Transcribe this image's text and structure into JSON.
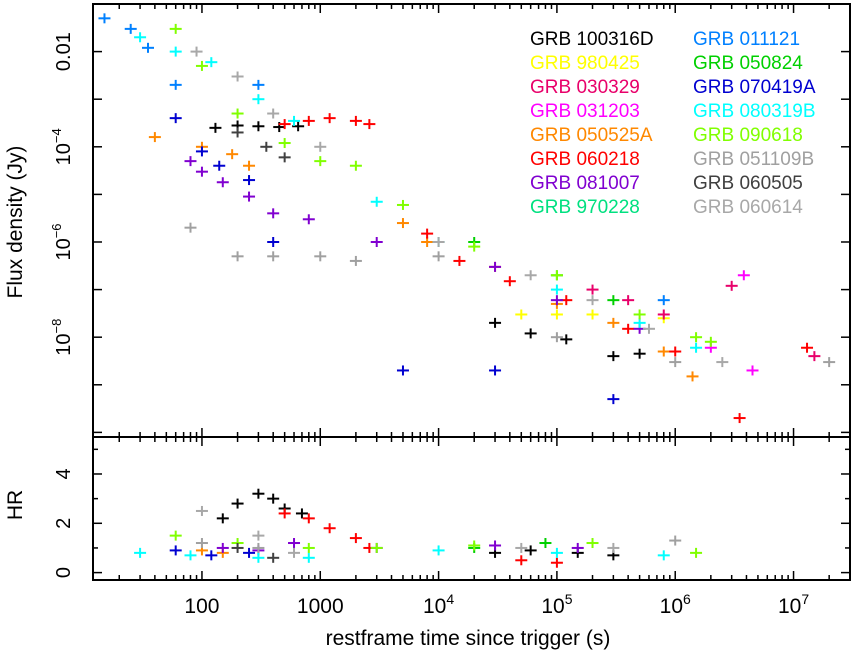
{
  "chart_data": {
    "type": "scatter",
    "xlabel": "restframe time since trigger (s)",
    "x_scale": "log",
    "xlim": [
      12,
      30000000
    ],
    "x_ticks": [
      {
        "value": 100,
        "label": "100",
        "sup": ""
      },
      {
        "value": 1000,
        "label": "1000",
        "sup": ""
      },
      {
        "value": 10000,
        "label": "10",
        "sup": "4"
      },
      {
        "value": 100000,
        "label": "10",
        "sup": "5"
      },
      {
        "value": 1000000,
        "label": "10",
        "sup": "6"
      },
      {
        "value": 10000000,
        "label": "10",
        "sup": "7"
      }
    ],
    "panels": [
      {
        "id": "flux",
        "ylabel": "Flux density (Jy)",
        "y_scale": "log",
        "ylim": [
          8e-11,
          0.1
        ],
        "y_ticks": [
          {
            "value": 0.01,
            "label": "0.01",
            "sup": ""
          },
          {
            "value": 0.0001,
            "label": "10",
            "sup": "−4"
          },
          {
            "value": 1e-06,
            "label": "10",
            "sup": "−6"
          },
          {
            "value": 1e-08,
            "label": "10",
            "sup": "−8"
          }
        ]
      },
      {
        "id": "hr",
        "ylabel": "HR",
        "y_scale": "linear",
        "ylim": [
          -0.3,
          5.5
        ],
        "y_ticks": [
          {
            "value": 0,
            "label": "0",
            "sup": ""
          },
          {
            "value": 2,
            "label": "2",
            "sup": ""
          },
          {
            "value": 4,
            "label": "4",
            "sup": ""
          }
        ]
      }
    ],
    "legend_position": "top-right",
    "series": [
      {
        "name": "GRB 100316D",
        "color": "#000000",
        "flux": [
          [
            130,
            0.00025
          ],
          [
            200,
            0.00028
          ],
          [
            300,
            0.00027
          ],
          [
            450,
            0.00026
          ],
          [
            650,
            0.00027
          ],
          [
            30000,
            2e-08
          ],
          [
            60000,
            1.2e-08
          ],
          [
            120000,
            9e-09
          ],
          [
            300000,
            4e-09
          ],
          [
            500000,
            4.5e-09
          ]
        ],
        "hr": [
          [
            150,
            2.2
          ],
          [
            200,
            2.8
          ],
          [
            300,
            3.2
          ],
          [
            400,
            3.0
          ],
          [
            500,
            2.6
          ],
          [
            700,
            2.4
          ],
          [
            30000,
            0.8
          ],
          [
            60000,
            0.9
          ],
          [
            150000,
            0.8
          ],
          [
            300000,
            0.7
          ]
        ]
      },
      {
        "name": "GRB 980425",
        "color": "#ffff00",
        "flux": [
          [
            50000,
            3e-08
          ],
          [
            100000,
            3e-08
          ],
          [
            200000,
            3e-08
          ],
          [
            800000,
            2.5e-08
          ]
        ],
        "hr": []
      },
      {
        "name": "GRB 030329",
        "color": "#e8006a",
        "flux": [
          [
            200000,
            1e-07
          ],
          [
            400000,
            6e-08
          ],
          [
            800000,
            3e-08
          ],
          [
            3000000,
            1.2e-07
          ],
          [
            15000000,
            4e-09
          ]
        ],
        "hr": []
      },
      {
        "name": "GRB 031203",
        "color": "#ff00ff",
        "flux": [
          [
            2000000,
            6e-09
          ],
          [
            3800000,
            2e-07
          ],
          [
            4500000,
            2e-09
          ]
        ],
        "hr": []
      },
      {
        "name": "GRB 050525A",
        "color": "#ff8800",
        "flux": [
          [
            40,
            0.00016
          ],
          [
            100,
            0.0001
          ],
          [
            180,
            7e-05
          ],
          [
            250,
            4e-05
          ],
          [
            5000,
            2.5e-06
          ],
          [
            8000,
            1e-06
          ],
          [
            30000,
            3e-07
          ],
          [
            100000,
            5e-08
          ],
          [
            300000,
            2e-08
          ],
          [
            800000,
            5e-09
          ],
          [
            1400000,
            1.5e-09
          ]
        ],
        "hr": [
          [
            100,
            0.9
          ],
          [
            150,
            0.8
          ]
        ]
      },
      {
        "name": "GRB 060218",
        "color": "#ff0000",
        "flux": [
          [
            500,
            0.0003
          ],
          [
            800,
            0.00035
          ],
          [
            1200,
            0.0004
          ],
          [
            2000,
            0.00035
          ],
          [
            2600,
            0.0003
          ],
          [
            8000,
            1.5e-06
          ],
          [
            15000,
            4e-07
          ],
          [
            40000,
            1.5e-07
          ],
          [
            120000,
            6e-08
          ],
          [
            400000,
            1.5e-08
          ],
          [
            1000000,
            5e-09
          ],
          [
            3500000,
            2e-10
          ],
          [
            13000000,
            6e-09
          ]
        ],
        "hr": [
          [
            500,
            2.4
          ],
          [
            800,
            2.2
          ],
          [
            1200,
            1.8
          ],
          [
            2000,
            1.4
          ],
          [
            2600,
            1.0
          ],
          [
            50000,
            0.5
          ],
          [
            100000,
            0.4
          ]
        ]
      },
      {
        "name": "GRB 081007",
        "color": "#8000d0",
        "flux": [
          [
            80,
            5e-05
          ],
          [
            100,
            3e-05
          ],
          [
            150,
            1.8e-05
          ],
          [
            250,
            9e-06
          ],
          [
            400,
            4e-06
          ],
          [
            800,
            3e-06
          ],
          [
            3000,
            1e-06
          ],
          [
            30000,
            3e-07
          ],
          [
            100000,
            6e-08
          ],
          [
            500000,
            1.5e-08
          ]
        ],
        "hr": [
          [
            150,
            1.0
          ],
          [
            300,
            0.9
          ],
          [
            600,
            1.2
          ],
          [
            3000,
            1.0
          ],
          [
            30000,
            1.1
          ],
          [
            150000,
            1.0
          ]
        ]
      },
      {
        "name": "GRB 970228",
        "color": "#00e080",
        "flux": [],
        "hr": []
      },
      {
        "name": "GRB 011121",
        "color": "#0080ff",
        "flux": [
          [
            15,
            0.05
          ],
          [
            25,
            0.03
          ],
          [
            35,
            0.012
          ],
          [
            60,
            0.002
          ],
          [
            300,
            0.002
          ],
          [
            800000,
            6e-08
          ]
        ],
        "hr": []
      },
      {
        "name": "GRB 050824",
        "color": "#00d000",
        "flux": [
          [
            20000,
            1e-06
          ],
          [
            100000,
            2e-07
          ],
          [
            300000,
            6e-08
          ]
        ],
        "hr": [
          [
            20000,
            1.0
          ],
          [
            80000,
            1.2
          ]
        ]
      },
      {
        "name": "GRB 070419A",
        "color": "#0000d0",
        "flux": [
          [
            60,
            0.0004
          ],
          [
            100,
            8e-05
          ],
          [
            140,
            4e-05
          ],
          [
            250,
            2e-05
          ],
          [
            400,
            1e-06
          ],
          [
            5000,
            2e-09
          ],
          [
            30000,
            2e-09
          ],
          [
            300000,
            5e-10
          ]
        ],
        "hr": [
          [
            60,
            0.9
          ],
          [
            120,
            0.7
          ],
          [
            250,
            0.8
          ]
        ]
      },
      {
        "name": "GRB 080319B",
        "color": "#00ffff",
        "flux": [
          [
            30,
            0.02
          ],
          [
            60,
            0.01
          ],
          [
            120,
            0.006
          ],
          [
            300,
            0.001
          ],
          [
            600,
            0.00035
          ],
          [
            3000,
            7e-06
          ],
          [
            10000,
            1e-06
          ],
          [
            100000,
            1e-07
          ],
          [
            500000,
            2e-08
          ],
          [
            1500000,
            6e-09
          ]
        ],
        "hr": [
          [
            30,
            0.8
          ],
          [
            80,
            0.7
          ],
          [
            300,
            0.6
          ],
          [
            800,
            0.6
          ],
          [
            10000,
            0.9
          ],
          [
            100000,
            0.8
          ],
          [
            800000,
            0.7
          ]
        ]
      },
      {
        "name": "GRB 090618",
        "color": "#80ff00",
        "flux": [
          [
            60,
            0.03
          ],
          [
            100,
            0.005
          ],
          [
            200,
            0.0005
          ],
          [
            500,
            0.00012
          ],
          [
            1000,
            5e-05
          ],
          [
            2000,
            4e-05
          ],
          [
            5000,
            6e-06
          ],
          [
            20000,
            8e-07
          ],
          [
            100000,
            2e-07
          ],
          [
            500000,
            3e-08
          ],
          [
            1500000,
            1e-08
          ],
          [
            2000000,
            8e-09
          ]
        ],
        "hr": [
          [
            60,
            1.5
          ],
          [
            200,
            1.2
          ],
          [
            800,
            1.0
          ],
          [
            3000,
            1.0
          ],
          [
            20000,
            1.1
          ],
          [
            200000,
            1.2
          ],
          [
            1500000,
            0.8
          ]
        ]
      },
      {
        "name": "GRB 051109B",
        "color": "#a0a0a0",
        "flux": [
          [
            80,
            2e-06
          ],
          [
            200,
            5e-07
          ],
          [
            400,
            5e-07
          ],
          [
            1000,
            5e-07
          ],
          [
            2000,
            4e-07
          ],
          [
            10000,
            5e-07
          ],
          [
            100000,
            1e-08
          ],
          [
            1000000,
            3e-09
          ],
          [
            20000000,
            3e-09
          ]
        ],
        "hr": [
          [
            100,
            1.2
          ],
          [
            300,
            1.0
          ],
          [
            1000000,
            1.3
          ]
        ]
      },
      {
        "name": "GRB 060505",
        "color": "#404040",
        "flux": [
          [
            200,
            0.0002
          ],
          [
            350,
            0.0001
          ],
          [
            500,
            6e-05
          ]
        ],
        "hr": [
          [
            200,
            1.0
          ],
          [
            400,
            0.6
          ]
        ]
      },
      {
        "name": "GRB 060614",
        "color": "#a8a8a8",
        "flux": [
          [
            90,
            0.01
          ],
          [
            200,
            0.003
          ],
          [
            400,
            0.0005
          ],
          [
            1000,
            0.0001
          ],
          [
            10000,
            1e-06
          ],
          [
            60000,
            2e-07
          ],
          [
            200000,
            6e-08
          ],
          [
            600000,
            1.5e-08
          ],
          [
            2500000,
            3e-09
          ]
        ],
        "hr": [
          [
            100,
            2.5
          ],
          [
            300,
            1.5
          ],
          [
            600,
            0.8
          ],
          [
            50000,
            1.0
          ],
          [
            300000,
            1.0
          ]
        ]
      }
    ]
  }
}
